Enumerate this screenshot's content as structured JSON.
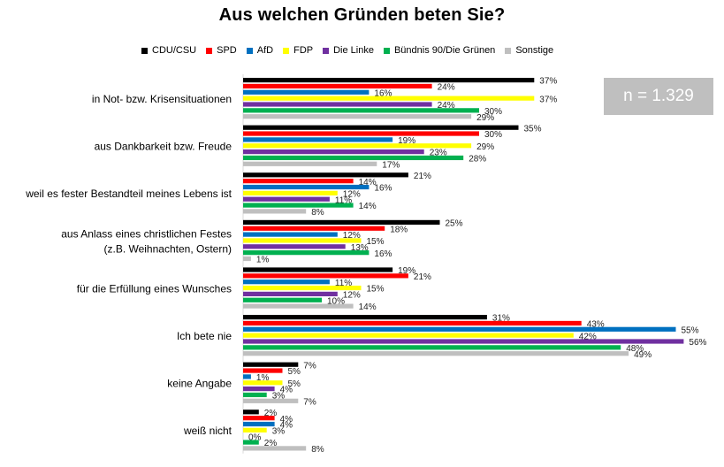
{
  "title": "Aus welchen Gründen beten Sie?",
  "sample_note": "n = 1.329",
  "colors": {
    "CDU/CSU": "#000000",
    "SPD": "#ff0000",
    "AfD": "#0070c0",
    "FDP": "#ffff00",
    "Die Linke": "#7030a0",
    "Bündnis 90/Die Grünen": "#00b050",
    "Sonstige": "#bfbfbf"
  },
  "chart_data": {
    "type": "bar",
    "orientation": "horizontal",
    "unit": "%",
    "categories": [
      [
        "in Not- bzw. Krisensituationen"
      ],
      [
        "aus Dankbarkeit bzw. Freude"
      ],
      [
        "weil es fester Bestandteil meines Lebens ist"
      ],
      [
        "aus Anlass eines christlichen Festes",
        "(z.B. Weihnachten, Ostern)"
      ],
      [
        "für die Erfüllung eines Wunsches"
      ],
      [
        "Ich bete nie"
      ],
      [
        "keine Angabe"
      ],
      [
        "weiß nicht"
      ]
    ],
    "series": [
      {
        "name": "CDU/CSU",
        "values": [
          37,
          35,
          21,
          25,
          19,
          31,
          7,
          2
        ]
      },
      {
        "name": "SPD",
        "values": [
          24,
          30,
          14,
          18,
          21,
          43,
          5,
          4
        ]
      },
      {
        "name": "AfD",
        "values": [
          16,
          19,
          16,
          12,
          11,
          55,
          1,
          4
        ]
      },
      {
        "name": "FDP",
        "values": [
          37,
          29,
          12,
          15,
          15,
          42,
          5,
          3
        ]
      },
      {
        "name": "Die Linke",
        "values": [
          24,
          23,
          11,
          13,
          12,
          56,
          4,
          0
        ]
      },
      {
        "name": "Bündnis 90/Die Grünen",
        "values": [
          30,
          28,
          14,
          16,
          10,
          48,
          3,
          2
        ]
      },
      {
        "name": "Sonstige",
        "values": [
          29,
          17,
          8,
          1,
          14,
          49,
          7,
          8
        ]
      }
    ],
    "xlim": [
      0,
      60
    ],
    "grid": false,
    "legend_position": "top"
  }
}
